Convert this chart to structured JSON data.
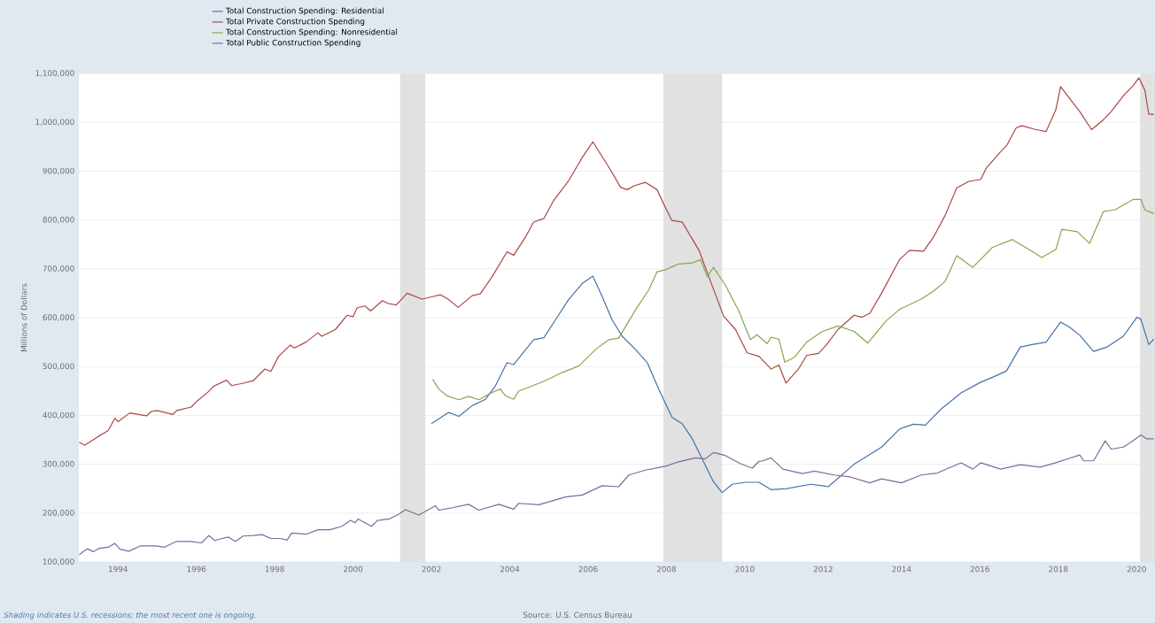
{
  "chart_data": {
    "type": "line",
    "ylabel": "Millions of Dollars",
    "annotations": [
      "Shading indicates U.S. recessions; the most recent one is ongoing.",
      "Source: U.S. Census Bureau"
    ],
    "xlim": [
      1993,
      2020.47
    ],
    "ylim": [
      100000,
      1100000
    ],
    "xticks": [
      1994,
      1996,
      1998,
      2000,
      2002,
      2004,
      2006,
      2008,
      2010,
      2012,
      2014,
      2016,
      2018,
      2020
    ],
    "yticks": [
      {
        "value": 100000,
        "label": "100,000"
      },
      {
        "value": 200000,
        "label": "200,000"
      },
      {
        "value": 300000,
        "label": "300,000"
      },
      {
        "value": 400000,
        "label": "400,000"
      },
      {
        "value": 500000,
        "label": "500,000"
      },
      {
        "value": 600000,
        "label": "600,000"
      },
      {
        "value": 700000,
        "label": "700,000"
      },
      {
        "value": 800000,
        "label": "800,000"
      },
      {
        "value": 900000,
        "label": "900,000"
      },
      {
        "value": 1000000,
        "label": "1,000,000"
      },
      {
        "value": 1100000,
        "label": "1,100,000"
      }
    ],
    "grid": "y",
    "legend": "top left",
    "bands": [
      {
        "axis": "x",
        "from": 2001.2,
        "to": 2001.85,
        "color": "#e1e1e1"
      },
      {
        "axis": "x",
        "from": 2007.92,
        "to": 2009.42,
        "color": "#e1e1e1"
      },
      {
        "axis": "x",
        "from": 2020.09,
        "to": 2020.47,
        "color": "#e1e1e1"
      }
    ],
    "series": [
      {
        "name": "Total Construction Spending: Residential",
        "color": "#4572a7",
        "x": [
          2002.0,
          2002.19,
          2002.44,
          2002.7,
          2003.04,
          2003.38,
          2003.63,
          2003.93,
          2004.1,
          2004.31,
          2004.61,
          2004.87,
          2005.17,
          2005.5,
          2005.85,
          2006.12,
          2006.36,
          2006.61,
          2006.87,
          2007.21,
          2007.51,
          2007.8,
          2008.14,
          2008.4,
          2008.66,
          2008.99,
          2009.2,
          2009.42,
          2009.68,
          2010.02,
          2010.36,
          2010.67,
          2011.07,
          2011.68,
          2011.98,
          2012.13,
          2012.79,
          2013.49,
          2013.95,
          2014.3,
          2014.61,
          2015.01,
          2015.52,
          2016.02,
          2016.32,
          2016.68,
          2017.03,
          2017.33,
          2017.69,
          2018.06,
          2018.3,
          2018.55,
          2018.9,
          2019.25,
          2019.66,
          2020.01,
          2020.11,
          2020.31,
          2020.44
        ],
        "values": [
          383000,
          393000,
          406000,
          398000,
          420000,
          433000,
          460000,
          508000,
          504000,
          525000,
          555000,
          559000,
          596000,
          637000,
          670000,
          685000,
          643000,
          596000,
          562000,
          535000,
          508000,
          454000,
          396000,
          383000,
          352000,
          298000,
          264000,
          242000,
          259000,
          263000,
          263000,
          248000,
          250000,
          259000,
          256000,
          254000,
          300000,
          335000,
          372000,
          382000,
          380000,
          413000,
          446000,
          468000,
          478000,
          491000,
          540000,
          545000,
          550000,
          591000,
          580000,
          564000,
          531000,
          540000,
          562000,
          601000,
          597000,
          545000,
          556000
        ]
      },
      {
        "name": "Total Private Construction Spending",
        "color": "#aa4643",
        "x": [
          1993.01,
          1993.15,
          1993.5,
          1993.75,
          1993.92,
          1994.0,
          1994.3,
          1994.73,
          1994.85,
          1995.0,
          1995.4,
          1995.5,
          1995.87,
          1996.0,
          1996.3,
          1996.45,
          1996.77,
          1996.9,
          1997.2,
          1997.45,
          1997.75,
          1997.9,
          1998.1,
          1998.4,
          1998.5,
          1998.8,
          1999.1,
          1999.2,
          1999.55,
          1999.85,
          2000.0,
          2000.1,
          2000.3,
          2000.45,
          2000.75,
          2000.9,
          2001.1,
          2001.38,
          2001.76,
          2002.02,
          2002.23,
          2002.44,
          2002.68,
          2003.04,
          2003.25,
          2003.55,
          2003.93,
          2004.1,
          2004.4,
          2004.61,
          2004.87,
          2005.12,
          2005.5,
          2005.85,
          2006.12,
          2006.53,
          2006.83,
          2007.0,
          2007.17,
          2007.46,
          2007.76,
          2007.97,
          2008.14,
          2008.4,
          2008.83,
          2009.08,
          2009.46,
          2009.76,
          2010.06,
          2010.36,
          2010.67,
          2010.87,
          2011.05,
          2011.37,
          2011.58,
          2011.88,
          2012.08,
          2012.38,
          2012.79,
          2012.99,
          2013.19,
          2013.49,
          2013.95,
          2014.2,
          2014.56,
          2014.81,
          2015.11,
          2015.41,
          2015.72,
          2016.02,
          2016.17,
          2016.53,
          2016.68,
          2016.93,
          2017.08,
          2017.43,
          2017.69,
          2017.94,
          2018.06,
          2018.24,
          2018.55,
          2018.85,
          2019.15,
          2019.35,
          2019.66,
          2019.91,
          2020.06,
          2020.21,
          2020.31,
          2020.44
        ],
        "values": [
          345000,
          339000,
          357000,
          369000,
          394000,
          387000,
          405000,
          399000,
          408000,
          410000,
          402000,
          410000,
          417000,
          428000,
          448000,
          460000,
          472000,
          461000,
          466000,
          471000,
          495000,
          490000,
          521000,
          544000,
          538000,
          550000,
          569000,
          562000,
          576000,
          605000,
          602000,
          620000,
          624000,
          614000,
          635000,
          629000,
          626000,
          650000,
          638000,
          643000,
          647000,
          637000,
          621000,
          645000,
          649000,
          684000,
          735000,
          728000,
          765000,
          796000,
          803000,
          840000,
          880000,
          928000,
          960000,
          908000,
          867000,
          862000,
          870000,
          877000,
          862000,
          826000,
          799000,
          796000,
          738000,
          684000,
          603000,
          576000,
          528000,
          521000,
          495000,
          503000,
          466000,
          495000,
          523000,
          527000,
          544000,
          576000,
          605000,
          601000,
          609000,
          650000,
          719000,
          738000,
          736000,
          764000,
          809000,
          866000,
          879000,
          883000,
          907000,
          940000,
          952000,
          989000,
          993000,
          985000,
          981000,
          1026000,
          1073000,
          1054000,
          1022000,
          985000,
          1005000,
          1022000,
          1054000,
          1075000,
          1091000,
          1066000,
          1017000,
          1016000
        ]
      },
      {
        "name": "Total Construction Spending: Nonresidential",
        "color": "#89a54e",
        "x": [
          2002.03,
          2002.19,
          2002.4,
          2002.7,
          2002.95,
          2003.21,
          2003.55,
          2003.76,
          2003.89,
          2004.1,
          2004.23,
          2004.57,
          2004.99,
          2005.34,
          2005.76,
          2006.19,
          2006.53,
          2006.78,
          2007.21,
          2007.55,
          2007.76,
          2007.97,
          2008.31,
          2008.66,
          2008.87,
          2009.04,
          2009.2,
          2009.5,
          2009.85,
          2010.14,
          2010.31,
          2010.57,
          2010.67,
          2010.87,
          2011.02,
          2011.27,
          2011.58,
          2011.98,
          2012.38,
          2012.79,
          2013.14,
          2013.6,
          2013.95,
          2014.5,
          2014.81,
          2015.11,
          2015.41,
          2015.82,
          2016.32,
          2016.83,
          2017.33,
          2017.58,
          2017.94,
          2018.09,
          2018.49,
          2018.8,
          2019.15,
          2019.45,
          2019.91,
          2020.11,
          2020.21,
          2020.44
        ],
        "values": [
          474000,
          454000,
          440000,
          432000,
          439000,
          432000,
          447000,
          454000,
          440000,
          433000,
          450000,
          460000,
          474000,
          488000,
          501000,
          535000,
          555000,
          558000,
          616000,
          657000,
          694000,
          698000,
          710000,
          712000,
          719000,
          684000,
          703000,
          667000,
          613000,
          555000,
          565000,
          547000,
          560000,
          556000,
          509000,
          519000,
          550000,
          572000,
          583000,
          572000,
          548000,
          593000,
          617000,
          638000,
          654000,
          674000,
          727000,
          703000,
          744000,
          760000,
          736000,
          723000,
          740000,
          781000,
          776000,
          752000,
          817000,
          821000,
          842000,
          842000,
          821000,
          813000
        ]
      },
      {
        "name": "Total Public Construction Spending",
        "color": "#80699b",
        "x": [
          1993.01,
          1993.22,
          1993.37,
          1993.52,
          1993.75,
          1993.92,
          1994.05,
          1994.28,
          1994.58,
          1994.96,
          1995.18,
          1995.49,
          1995.86,
          1996.13,
          1996.32,
          1996.47,
          1996.81,
          1997.0,
          1997.19,
          1997.45,
          1997.68,
          1997.9,
          1998.13,
          1998.32,
          1998.43,
          1998.81,
          1999.11,
          1999.41,
          1999.71,
          1999.94,
          2000.05,
          2000.13,
          2000.47,
          2000.62,
          2000.92,
          2001.15,
          2001.34,
          2001.68,
          2002.1,
          2002.19,
          2002.53,
          2002.95,
          2003.21,
          2003.72,
          2004.1,
          2004.23,
          2004.74,
          2005.17,
          2005.42,
          2005.85,
          2006.36,
          2006.78,
          2007.04,
          2007.46,
          2007.97,
          2008.31,
          2008.74,
          2008.99,
          2009.2,
          2009.5,
          2009.89,
          2010.19,
          2010.36,
          2010.46,
          2010.67,
          2010.97,
          2011.47,
          2011.78,
          2012.28,
          2012.69,
          2013.19,
          2013.49,
          2014.0,
          2014.5,
          2014.91,
          2015.52,
          2015.82,
          2016.02,
          2016.53,
          2017.03,
          2017.54,
          2017.94,
          2018.24,
          2018.55,
          2018.65,
          2018.9,
          2019.2,
          2019.35,
          2019.66,
          2019.91,
          2020.11,
          2020.26,
          2020.44
        ],
        "values": [
          115000,
          127000,
          121000,
          128000,
          130000,
          138000,
          126000,
          122000,
          133000,
          133000,
          130000,
          142000,
          142000,
          139000,
          154000,
          144000,
          151000,
          142000,
          153000,
          154000,
          156000,
          148000,
          148000,
          145000,
          159000,
          157000,
          166000,
          166000,
          173000,
          185000,
          180000,
          188000,
          173000,
          185000,
          188000,
          197000,
          207000,
          196000,
          215000,
          206000,
          211000,
          218000,
          206000,
          218000,
          208000,
          220000,
          217000,
          227000,
          233000,
          237000,
          256000,
          254000,
          278000,
          288000,
          296000,
          305000,
          313000,
          311000,
          324000,
          318000,
          301000,
          292000,
          306000,
          307000,
          313000,
          290000,
          281000,
          286000,
          278000,
          274000,
          262000,
          270000,
          262000,
          278000,
          282000,
          303000,
          290000,
          303000,
          290000,
          299000,
          294000,
          303000,
          311000,
          319000,
          307000,
          307000,
          348000,
          331000,
          335000,
          348000,
          360000,
          352000,
          352000
        ]
      }
    ]
  }
}
